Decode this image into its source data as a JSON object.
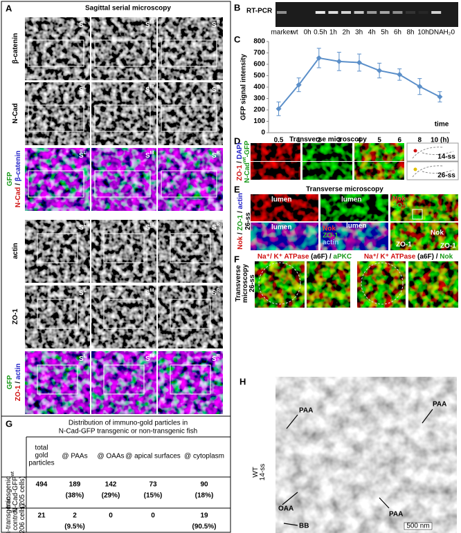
{
  "panel_a": {
    "letter": "A",
    "title": "Sagittal serial microscopy",
    "section": "S",
    "planes": [
      "L",
      "M",
      "R"
    ],
    "rows": [
      {
        "lines": [
          [
            {
              "text": "β-catenin"
            }
          ]
        ]
      },
      {
        "lines": [
          [
            {
              "text": "N-Cad"
            }
          ]
        ]
      },
      {
        "lines": [
          [
            {
              "text": "GFP",
              "color": "#1a9a1a"
            }
          ],
          [
            {
              "text": "N-Cad",
              "color": "#d01010"
            },
            {
              "text": " / "
            },
            {
              "text": "β-catenin",
              "color": "#2020c8"
            }
          ]
        ]
      },
      {
        "lines": [
          [
            {
              "text": "actin"
            }
          ]
        ]
      },
      {
        "lines": [
          [
            {
              "text": "ZO-1"
            }
          ]
        ]
      },
      {
        "lines": [
          [
            {
              "text": "GFP",
              "color": "#1a9a1a"
            }
          ],
          [
            {
              "text": "ZO-1",
              "color": "#d01010"
            },
            {
              "text": " / "
            },
            {
              "text": "actin",
              "color": "#2020c8"
            }
          ]
        ]
      }
    ]
  },
  "panel_b": {
    "letter": "B",
    "title": "RT-PCR",
    "lanes": [
      "marker",
      "wt",
      "0h",
      "0.5h",
      "1h",
      "2h",
      "3h",
      "4h",
      "5h",
      "6h",
      "8h",
      "10h",
      "DNA",
      "H₂0"
    ]
  },
  "chart_data": {
    "type": "line",
    "letter": "C",
    "ylabel": "GFP signal intensity",
    "xlabel": "time",
    "categories": [
      "0.5",
      "1",
      "2",
      "3",
      "4",
      "5",
      "6",
      "8",
      "10 (h)"
    ],
    "values": [
      210,
      420,
      655,
      625,
      615,
      545,
      510,
      405,
      315
    ],
    "errors": [
      60,
      60,
      85,
      80,
      75,
      65,
      50,
      70,
      45
    ],
    "color": "#5b8fc9",
    "ylim": [
      0,
      800
    ],
    "yticks": [
      0,
      100,
      200,
      300,
      400,
      500,
      600,
      700,
      800
    ]
  },
  "panel_d": {
    "letter": "D",
    "title": "Transverse microscopy",
    "row_label": [
      [
        {
          "text": "ZO-1",
          "color": "#d01010"
        },
        {
          "text": " / "
        },
        {
          "text": "DAPI",
          "color": "#2020c8"
        }
      ],
      [
        {
          "text": "N-Cad",
          "color": "#1a9a1a"
        },
        {
          "text": "wt",
          "color": "#1a9a1a",
          "sup": true
        },
        {
          "text": "-GFP",
          "color": "#1a9a1a"
        }
      ]
    ],
    "stages": [
      "14-ss",
      "26-ss"
    ]
  },
  "panel_e": {
    "letter": "E",
    "title": "Transverse microscopy",
    "row_label": [
      [
        {
          "text": "Nok",
          "color": "#d01010"
        },
        {
          "text": " / "
        },
        {
          "text": "ZO-1",
          "color": "#1a9a1a"
        },
        {
          "text": " / "
        },
        {
          "text": "actin",
          "color": "#2020c8"
        }
      ],
      [
        {
          "text": "26-ss"
        }
      ]
    ],
    "lumen": "lumen",
    "nok": "Nok",
    "zo1": "ZO-1",
    "actin": "actin"
  },
  "panel_f": {
    "letter": "F",
    "side_label": [
      [
        {
          "text": "Transverse"
        }
      ],
      [
        {
          "text": "microscopy"
        }
      ],
      [
        {
          "text": "26-ss"
        }
      ]
    ],
    "headings": [
      [
        [
          {
            "text": "Na⁺/ K⁺ ATPase",
            "color": "#d01010"
          },
          {
            "text": " (a6F) / "
          },
          {
            "text": "aPKC",
            "color": "#1a9a1a"
          }
        ]
      ],
      [
        [
          {
            "text": "Na⁺/ K⁺ ATPase",
            "color": "#d01010"
          },
          {
            "text": " (a6F) / "
          },
          {
            "text": "Nok",
            "color": "#1a9a1a"
          }
        ]
      ]
    ]
  },
  "panel_g": {
    "letter": "G",
    "title": [
      "Distribution of immuno-gold particles in",
      "N-Cad-GFP transgenic or non-transgenic fish"
    ],
    "columns": [
      [
        "total",
        "gold",
        "particles"
      ],
      [
        "@ PAAs"
      ],
      [
        "@ OAAs"
      ],
      [
        "@ apical surfaces"
      ],
      [
        "@ cytoplasm"
      ]
    ],
    "rows": [
      {
        "label": [
          [
            {
              "text": "transgenic"
            }
          ],
          [
            {
              "text": "N-Cad-GFP"
            },
            {
              "text": "wt",
              "sup": true
            }
          ],
          [
            {
              "text": "(205 cells)"
            }
          ]
        ],
        "cells": [
          [
            "494"
          ],
          [
            "189",
            "(38%)"
          ],
          [
            "142",
            "(29%)"
          ],
          [
            "73",
            "(15%)"
          ],
          [
            "90",
            "(18%)"
          ]
        ]
      },
      {
        "label": [
          [
            {
              "text": "non-transgenic"
            }
          ],
          [
            {
              "text": "control"
            }
          ],
          [
            {
              "text": "(206 cells)"
            }
          ]
        ],
        "cells": [
          [
            "21"
          ],
          [
            "2",
            "(9.5%)"
          ],
          [
            "0"
          ],
          [
            "0"
          ],
          [
            "19",
            "(90.5%)"
          ]
        ]
      }
    ]
  },
  "panel_h": {
    "letter": "H",
    "paa": "PAA",
    "oaa": "OAA",
    "bb": "BB",
    "label": [
      [
        {
          "text": "WT"
        }
      ],
      [
        {
          "text": "14-ss"
        }
      ]
    ],
    "scale": "500 nm"
  }
}
